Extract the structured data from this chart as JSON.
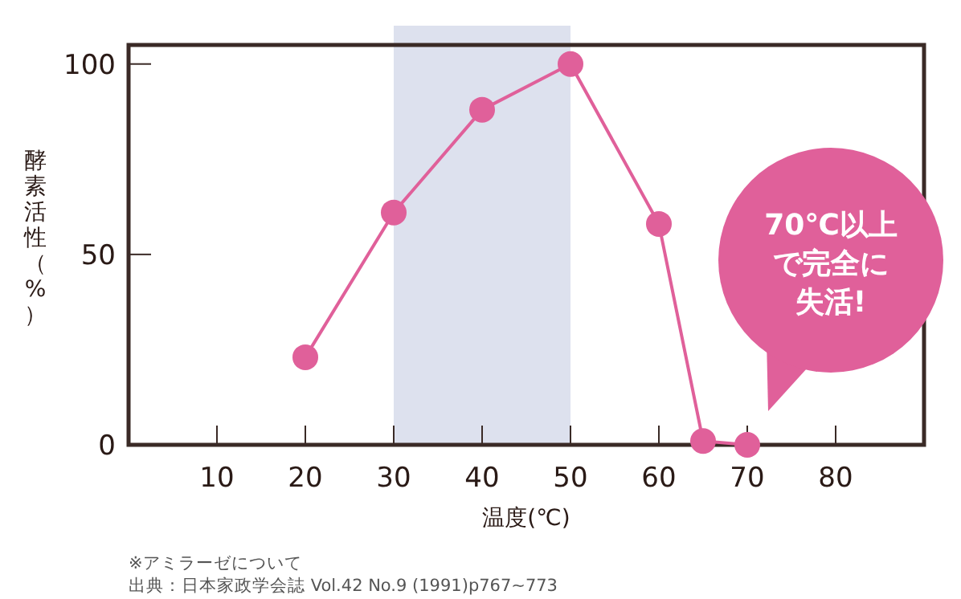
{
  "chart_data": {
    "type": "line",
    "xlabel": "温度(℃)",
    "ylabel": "酵素活性（%）",
    "x": [
      20,
      30,
      40,
      50,
      60,
      65,
      70
    ],
    "series": [
      {
        "color": "#e0609a",
        "values": [
          23,
          61,
          88,
          100,
          58,
          1,
          0
        ]
      }
    ],
    "marker": "circle",
    "xlim": [
      0,
      90
    ],
    "xticks": [
      10,
      20,
      30,
      40,
      50,
      60,
      70,
      80
    ],
    "ylim": [
      0,
      105
    ],
    "yticks": [
      0,
      50,
      100
    ],
    "bands": [
      {
        "axis": "x",
        "from": 30,
        "to": 50,
        "color": "#dde1ee"
      }
    ],
    "annotations": [
      "70℃以上で完全に失活!",
      "※アミラーゼについて",
      "出典：日本家政学会誌 Vol.42 No.9 (1991)p767~773"
    ]
  }
}
